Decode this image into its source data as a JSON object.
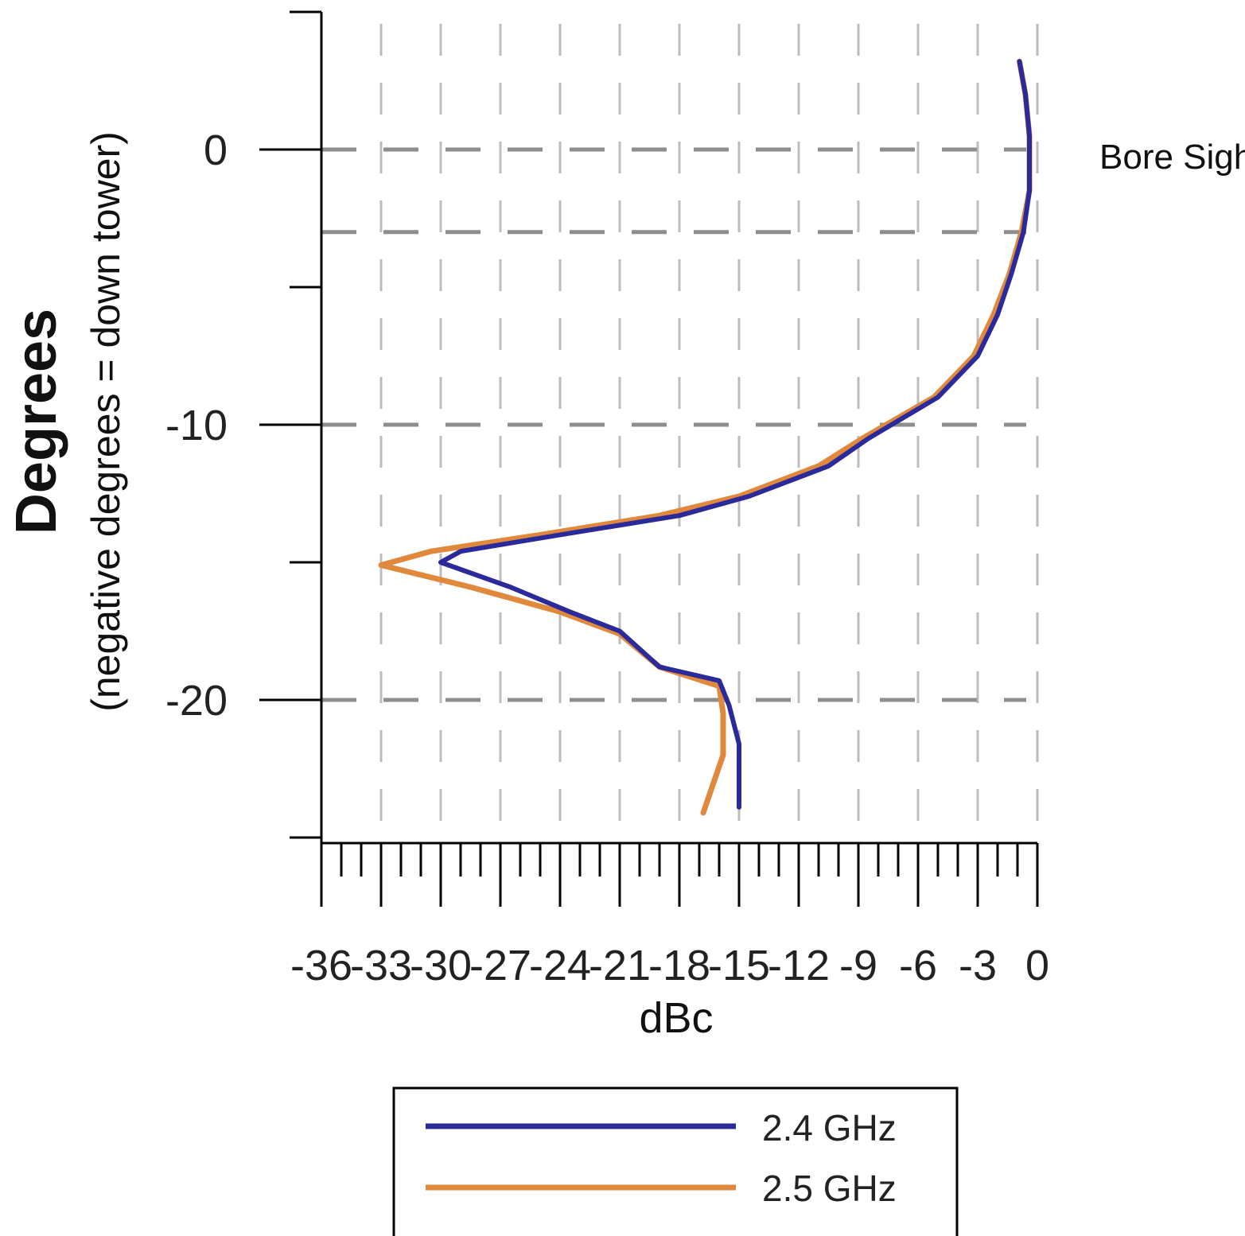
{
  "chart_data": {
    "type": "line",
    "orientation": "vertical",
    "title": "",
    "ylabel": "Degrees",
    "ylabel_sub": "(negative degrees = down tower)",
    "xlabel": "dBc",
    "xlim": [
      -36,
      0
    ],
    "ylim": [
      -25,
      5
    ],
    "yticks": [
      0,
      -10,
      -20
    ],
    "ytick_labels": [
      "0",
      "-10",
      "-20"
    ],
    "xticks": [
      -36,
      -33,
      -30,
      -27,
      -24,
      -21,
      -18,
      -15,
      -12,
      -9,
      -6,
      -3,
      0
    ],
    "xtick_labels": [
      "-36",
      "-33",
      "-30",
      "-27",
      "-24",
      "-21",
      "-18",
      "-15",
      "-12",
      "-9",
      "-6",
      "-3",
      "0"
    ],
    "grid": true,
    "annotation": "Bore Sight",
    "annotation_y": 0,
    "legend_position": "bottom",
    "series": [
      {
        "name": "2.4 GHz",
        "color": "#2a2a9a",
        "points": [
          {
            "db": -0.9,
            "deg": 3.2
          },
          {
            "db": -0.6,
            "deg": 2.0
          },
          {
            "db": -0.4,
            "deg": 0.5
          },
          {
            "db": -0.4,
            "deg": -1.5
          },
          {
            "db": -0.7,
            "deg": -3.0
          },
          {
            "db": -1.3,
            "deg": -4.5
          },
          {
            "db": -2.0,
            "deg": -6.0
          },
          {
            "db": -3.0,
            "deg": -7.5
          },
          {
            "db": -5.0,
            "deg": -9.0
          },
          {
            "db": -8.5,
            "deg": -10.5
          },
          {
            "db": -10.5,
            "deg": -11.5
          },
          {
            "db": -14.5,
            "deg": -12.6
          },
          {
            "db": -18.0,
            "deg": -13.3
          },
          {
            "db": -24.0,
            "deg": -14.0
          },
          {
            "db": -29.0,
            "deg": -14.6
          },
          {
            "db": -30.0,
            "deg": -15.0
          },
          {
            "db": -26.5,
            "deg": -15.9
          },
          {
            "db": -23.5,
            "deg": -16.8
          },
          {
            "db": -21.0,
            "deg": -17.5
          },
          {
            "db": -19.0,
            "deg": -18.8
          },
          {
            "db": -16.0,
            "deg": -19.3
          },
          {
            "db": -15.5,
            "deg": -20.2
          },
          {
            "db": -15.0,
            "deg": -21.6
          },
          {
            "db": -15.0,
            "deg": -23.9
          }
        ]
      },
      {
        "name": "2.5 GHz",
        "color": "#e0893c",
        "points": [
          {
            "db": -0.9,
            "deg": 3.2
          },
          {
            "db": -0.6,
            "deg": 2.0
          },
          {
            "db": -0.4,
            "deg": 0.5
          },
          {
            "db": -0.4,
            "deg": -1.5
          },
          {
            "db": -0.8,
            "deg": -3.0
          },
          {
            "db": -1.4,
            "deg": -4.5
          },
          {
            "db": -2.2,
            "deg": -6.0
          },
          {
            "db": -3.2,
            "deg": -7.5
          },
          {
            "db": -5.2,
            "deg": -9.0
          },
          {
            "db": -8.8,
            "deg": -10.5
          },
          {
            "db": -11.0,
            "deg": -11.5
          },
          {
            "db": -15.0,
            "deg": -12.6
          },
          {
            "db": -19.0,
            "deg": -13.3
          },
          {
            "db": -25.0,
            "deg": -14.0
          },
          {
            "db": -30.5,
            "deg": -14.6
          },
          {
            "db": -33.0,
            "deg": -15.1
          },
          {
            "db": -28.5,
            "deg": -15.9
          },
          {
            "db": -24.0,
            "deg": -16.8
          },
          {
            "db": -21.0,
            "deg": -17.6
          },
          {
            "db": -19.0,
            "deg": -18.8
          },
          {
            "db": -16.0,
            "deg": -19.5
          },
          {
            "db": -15.8,
            "deg": -20.5
          },
          {
            "db": -15.8,
            "deg": -22.0
          },
          {
            "db": -16.8,
            "deg": -24.1
          }
        ]
      }
    ]
  }
}
